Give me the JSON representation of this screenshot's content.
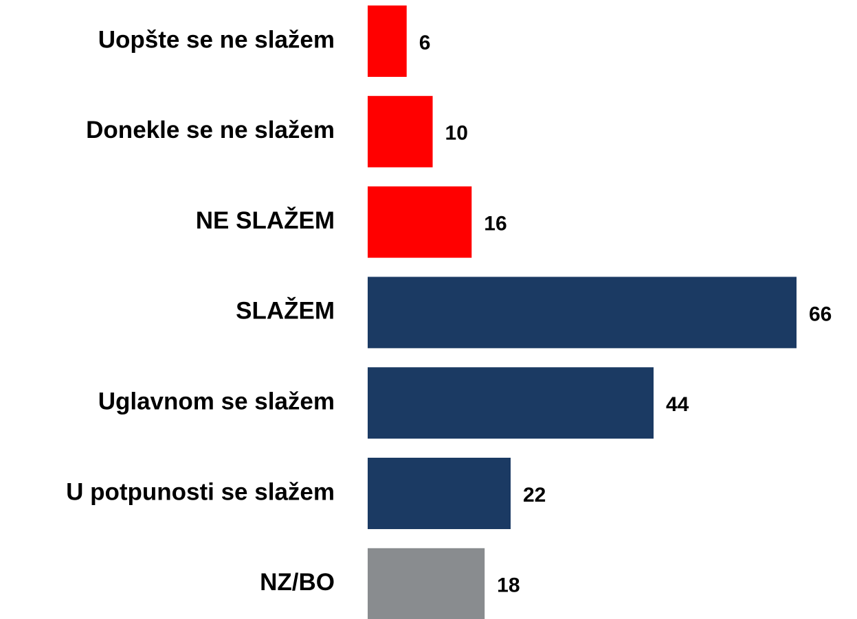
{
  "chart_data": {
    "type": "bar",
    "orientation": "horizontal",
    "categories": [
      "Uopšte se ne slažem",
      "Donekle se ne slažem",
      "NE SLAŽEM",
      "SLAŽEM",
      "Uglavnom se slažem",
      "U potpunosti se slažem",
      "NZ/BO"
    ],
    "values": [
      6,
      10,
      16,
      66,
      44,
      22,
      18
    ],
    "colors": [
      "#ff0000",
      "#ff0000",
      "#ff0000",
      "#1b3a63",
      "#1b3a63",
      "#1b3a63",
      "#898c8f"
    ]
  }
}
